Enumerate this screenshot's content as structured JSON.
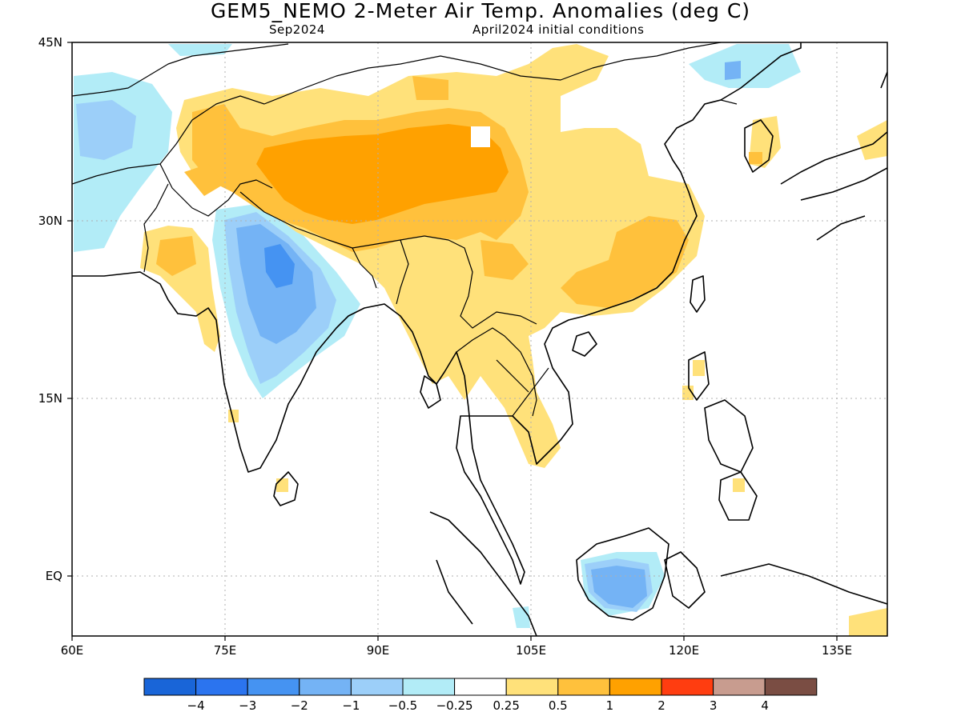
{
  "title": "GEM5_NEMO 2-Meter Air Temp. Anomalies (deg C)",
  "subtitle_left": "Sep2024",
  "subtitle_right": "April2024 initial conditions",
  "map": {
    "lon_range": [
      60,
      140
    ],
    "lat_range": [
      -5,
      45
    ],
    "x_ticks": [
      "60E",
      "75E",
      "90E",
      "105E",
      "120E",
      "135E"
    ],
    "y_ticks": [
      "45N",
      "30N",
      "15N",
      "EQ"
    ],
    "grid": "dotted"
  },
  "colorbar": {
    "colors": [
      "#1965d8",
      "#2b74ef",
      "#4593f2",
      "#74b3f5",
      "#9ccff9",
      "#b2ecf7",
      "#ffffff",
      "#ffe17a",
      "#ffc13c",
      "#ffa100",
      "#ff3d10",
      "#c89c8f",
      "#7a4d43"
    ],
    "labels": [
      "−4",
      "−3",
      "−2",
      "−1",
      "−0.5",
      "−0.25",
      "0.25",
      "0.5",
      "1",
      "2",
      "3",
      "4"
    ]
  }
}
